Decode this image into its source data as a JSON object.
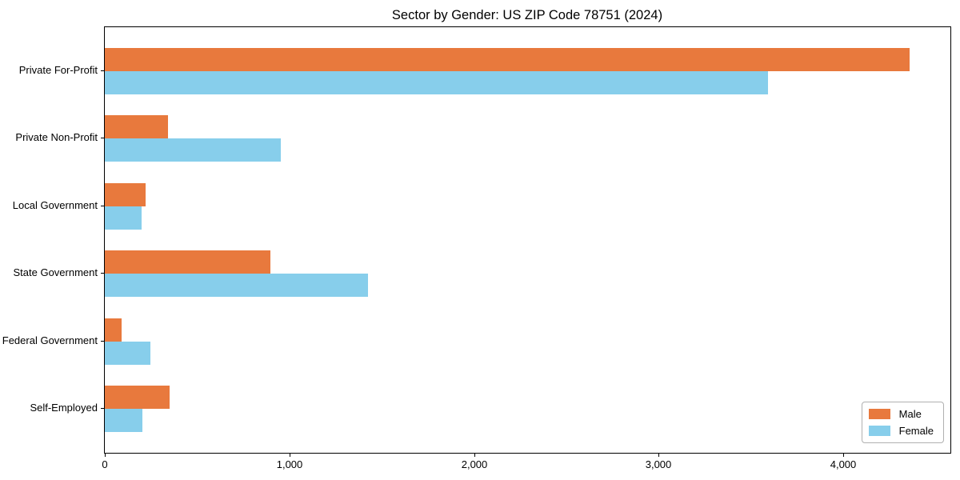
{
  "chart_data": {
    "type": "bar",
    "orientation": "horizontal",
    "title": "Sector by Gender: US ZIP Code 78751 (2024)",
    "categories": [
      "Private For-Profit",
      "Private Non-Profit",
      "Local Government",
      "State Government",
      "Federal Government",
      "Self-Employed"
    ],
    "series": [
      {
        "name": "Male",
        "color": "#E8793D",
        "values": [
          4360,
          340,
          220,
          895,
          90,
          350
        ]
      },
      {
        "name": "Female",
        "color": "#87CEEB",
        "values": [
          3590,
          955,
          200,
          1425,
          245,
          205
        ]
      }
    ],
    "xlabel": "",
    "ylabel": "",
    "xlim": [
      0,
      4580
    ],
    "x_ticks": [
      0,
      1000,
      2000,
      3000,
      4000
    ],
    "x_tick_labels": [
      "0",
      "1,000",
      "2,000",
      "3,000",
      "4,000"
    ],
    "grid": false,
    "legend_position": "lower right",
    "background_color": "#ffffff",
    "spine_color": "#000000"
  }
}
